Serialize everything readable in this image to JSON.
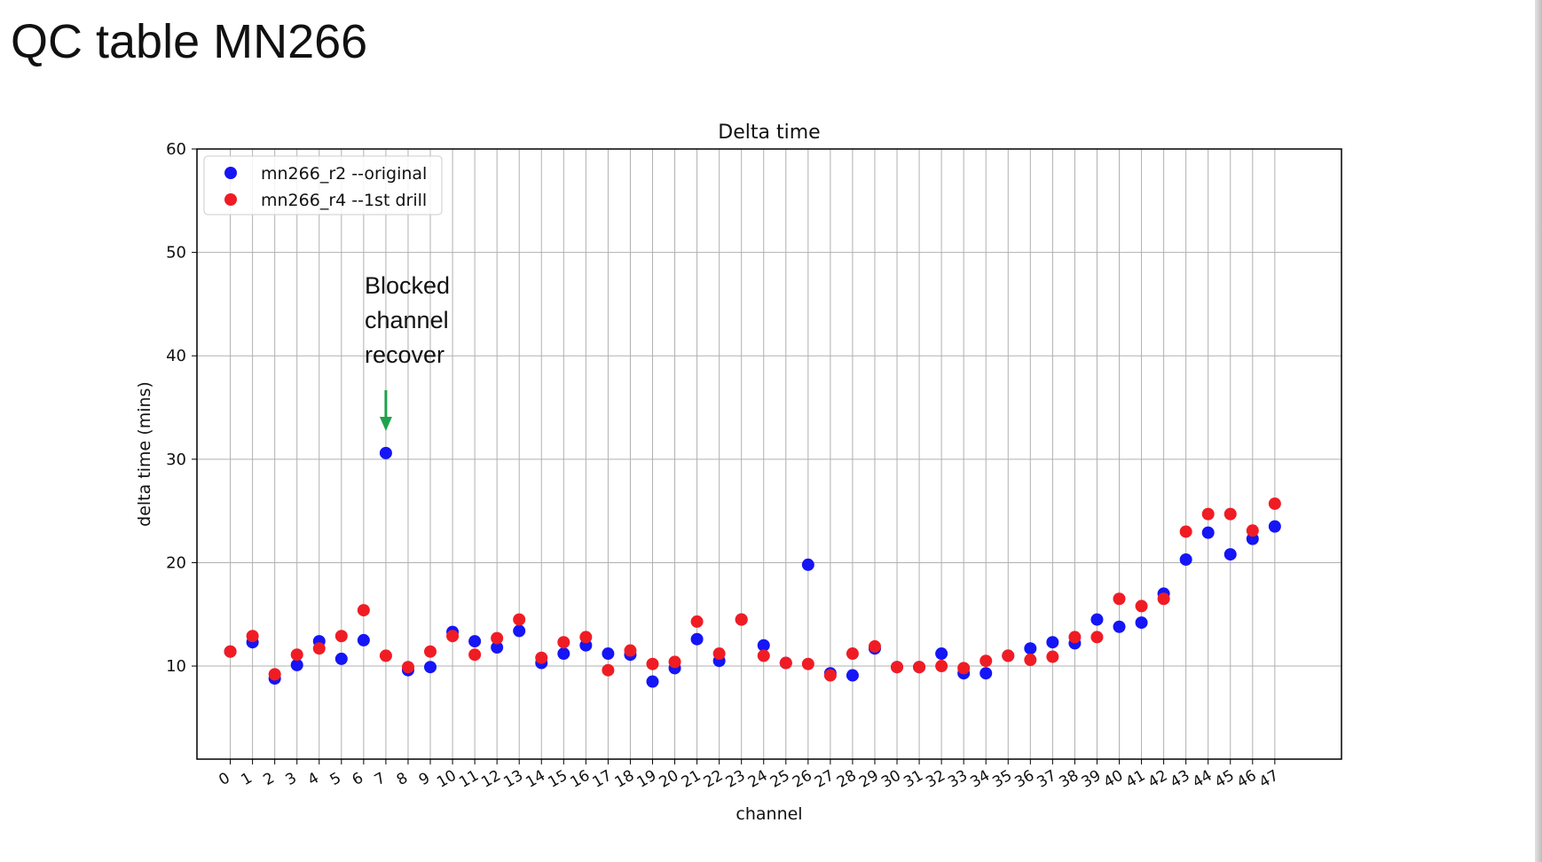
{
  "slide": {
    "title": "QC table MN266"
  },
  "annotation": {
    "lines": [
      "Blocked",
      "channel",
      "recover"
    ],
    "target_channel": 7,
    "arrow_color": "#1fa24a"
  },
  "colors": {
    "grid": "#b0b0b0",
    "axis": "#000000",
    "text": "#111111"
  },
  "chart_data": {
    "type": "scatter",
    "title": "Delta time",
    "xlabel": "channel",
    "ylabel": "delta time (mins)",
    "ylim": [
      1,
      60
    ],
    "yticks": [
      10,
      20,
      30,
      40,
      50,
      60
    ],
    "xticks": [
      0,
      1,
      2,
      3,
      4,
      5,
      6,
      7,
      8,
      9,
      10,
      11,
      12,
      13,
      14,
      15,
      16,
      17,
      18,
      19,
      20,
      21,
      22,
      23,
      24,
      25,
      26,
      27,
      28,
      29,
      30,
      31,
      32,
      33,
      34,
      35,
      36,
      37,
      38,
      39,
      40,
      41,
      42,
      43,
      44,
      45,
      46,
      47
    ],
    "xlim": [
      -1.5,
      50
    ],
    "grid": true,
    "legend_position": "top-left",
    "x": [
      0,
      1,
      2,
      3,
      4,
      5,
      6,
      7,
      8,
      9,
      10,
      11,
      12,
      13,
      14,
      15,
      16,
      17,
      18,
      19,
      20,
      21,
      22,
      23,
      24,
      25,
      26,
      27,
      28,
      29,
      30,
      31,
      32,
      33,
      34,
      35,
      36,
      37,
      38,
      39,
      40,
      41,
      42,
      43,
      44,
      45,
      46,
      47
    ],
    "series": [
      {
        "name": "mn266_r2 --original",
        "color": "#1515f5",
        "values": [
          11.4,
          12.3,
          8.8,
          10.1,
          12.4,
          10.7,
          12.5,
          30.6,
          9.6,
          9.9,
          13.3,
          12.4,
          11.8,
          13.4,
          10.3,
          11.2,
          12.0,
          11.2,
          11.1,
          8.5,
          9.8,
          12.6,
          10.5,
          14.5,
          12.0,
          10.3,
          19.8,
          9.3,
          9.1,
          11.7,
          9.9,
          9.9,
          11.2,
          9.3,
          9.3,
          11.0,
          11.7,
          12.3,
          12.2,
          14.5,
          13.8,
          14.2,
          17.0,
          20.3,
          22.9,
          20.8,
          22.3,
          23.5
        ]
      },
      {
        "name": "mn266_r4 --1st drill",
        "color": "#f01c24",
        "values": [
          11.4,
          12.9,
          9.2,
          11.1,
          11.7,
          12.9,
          15.4,
          11.0,
          9.9,
          11.4,
          12.9,
          11.1,
          12.7,
          14.5,
          10.8,
          12.3,
          12.8,
          9.6,
          11.5,
          10.2,
          10.4,
          14.3,
          11.2,
          14.5,
          11.0,
          10.3,
          10.2,
          9.1,
          11.2,
          11.9,
          9.9,
          9.9,
          10.0,
          9.8,
          10.5,
          11.0,
          10.6,
          10.9,
          12.8,
          12.8,
          16.5,
          15.8,
          16.5,
          23.0,
          24.7,
          24.7,
          23.1,
          25.7
        ]
      }
    ]
  }
}
